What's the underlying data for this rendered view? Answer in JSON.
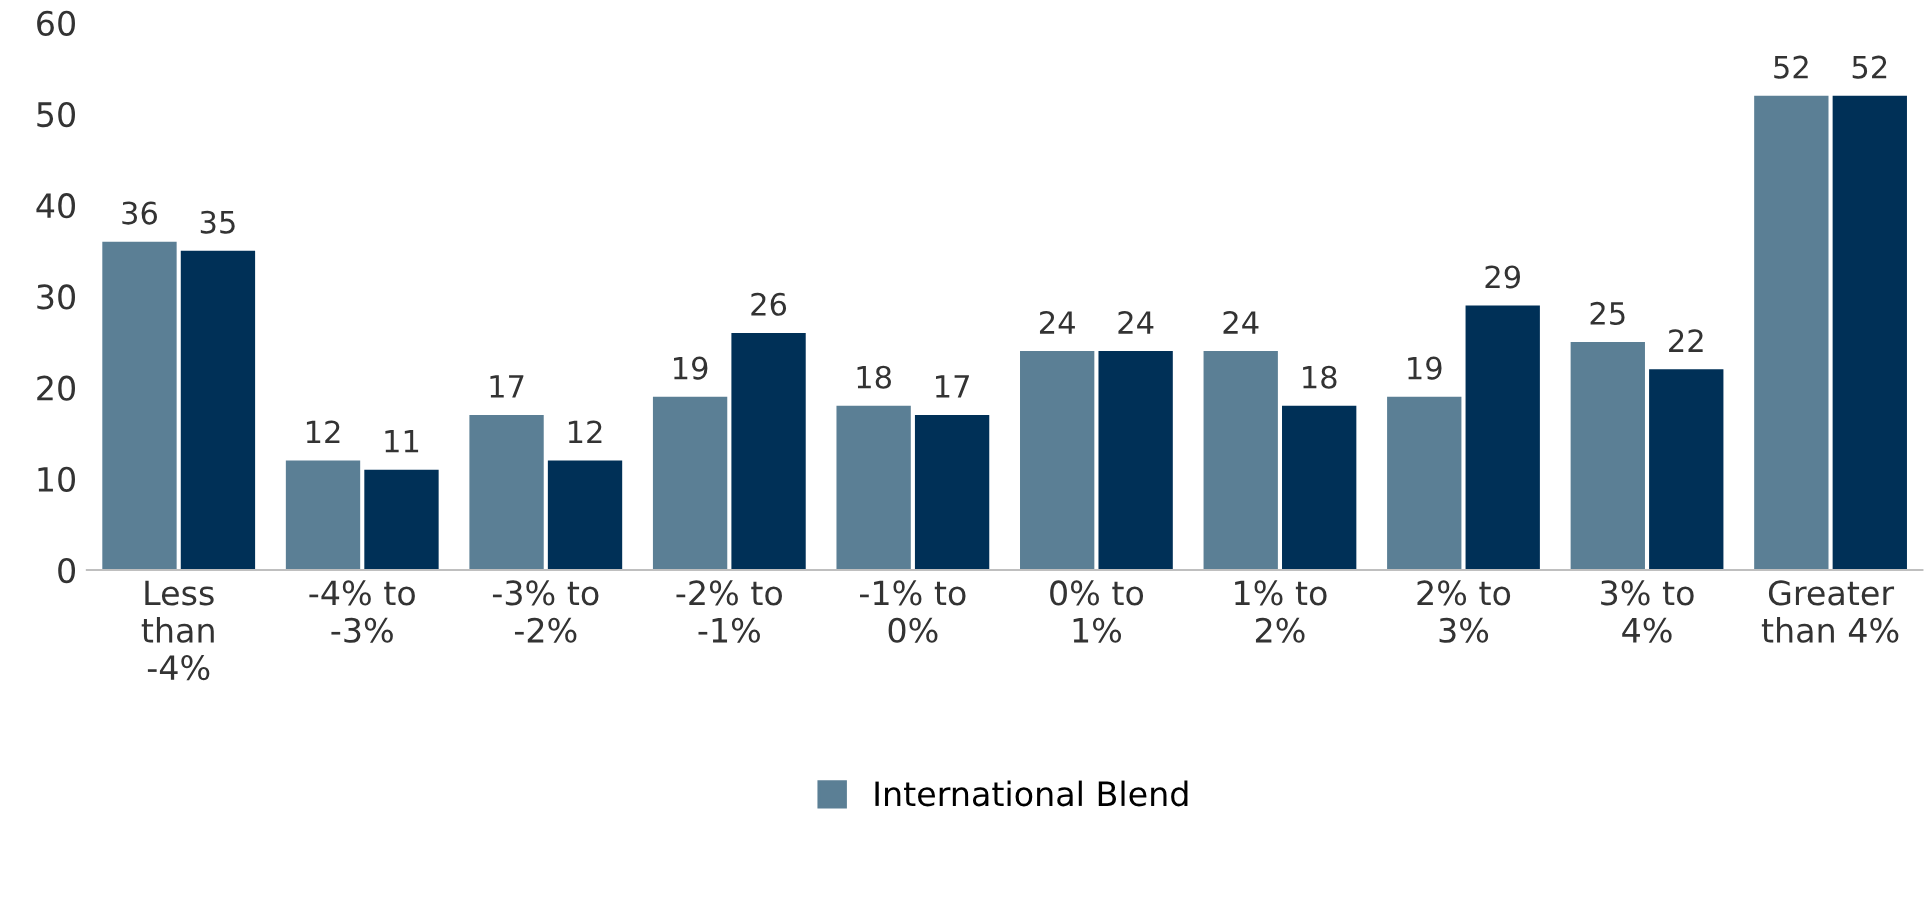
{
  "chart_data": {
    "type": "bar",
    "categories": [
      "Less\nthan\n-4%",
      "-4% to\n-3%",
      "-3% to\n-2%",
      "-2% to\n-1%",
      "-1% to\n0%",
      "0% to\n1%",
      "1% to\n2%",
      "2% to\n3%",
      "3% to\n4%",
      "Greater\nthan 4%"
    ],
    "series": [
      {
        "name": "International Blend",
        "color": "#5b7f95",
        "values": [
          36,
          12,
          17,
          19,
          18,
          24,
          24,
          19,
          25,
          52
        ]
      },
      {
        "color": "#003057",
        "values": [
          35,
          11,
          12,
          26,
          17,
          24,
          18,
          29,
          22,
          52
        ]
      }
    ],
    "ylim": [
      0,
      60
    ],
    "yticks": [
      0,
      10,
      20,
      30,
      40,
      50,
      60
    ],
    "data_labels": true,
    "grid": false,
    "legend": "bottom"
  }
}
